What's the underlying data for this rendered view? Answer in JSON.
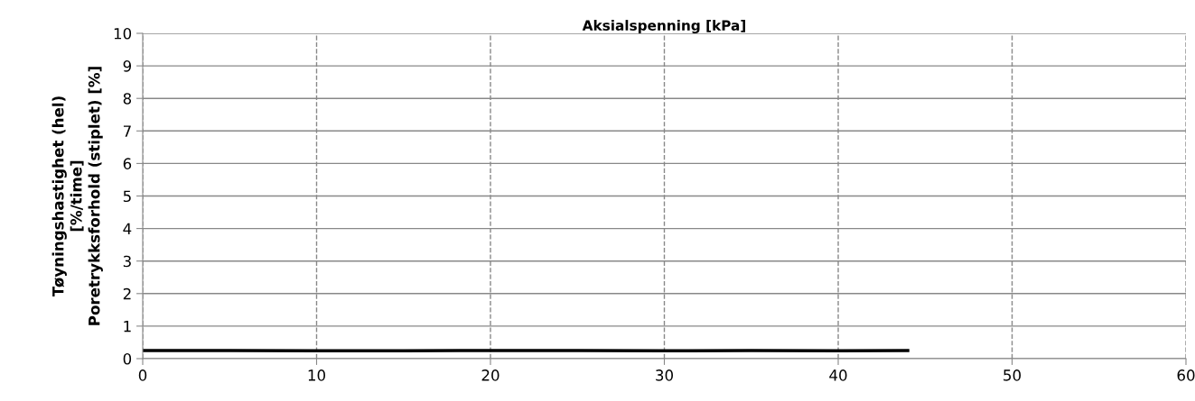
{
  "chart_data": {
    "type": "line",
    "title": "Aksialspenning [kPa]",
    "ylabel": "Tøyningshastighet (hel)\n[%/time]\nPoretrykksforhold (stiplet) [%]",
    "series": [
      {
        "color": "#000000",
        "x": [
          0,
          5,
          10,
          15,
          20,
          25,
          30,
          35,
          40,
          44
        ],
        "values": [
          0.25,
          0.25,
          0.24,
          0.24,
          0.25,
          0.25,
          0.24,
          0.25,
          0.24,
          0.25
        ]
      }
    ],
    "xlim": [
      0,
      60
    ],
    "xticks": [
      0,
      10,
      20,
      30,
      40,
      50,
      60
    ],
    "ylim": [
      0,
      10
    ],
    "yticks": [
      0,
      1,
      2,
      3,
      4,
      5,
      6,
      7,
      8,
      9,
      10
    ],
    "grid": true,
    "line_style": "solid",
    "marker": "none"
  }
}
